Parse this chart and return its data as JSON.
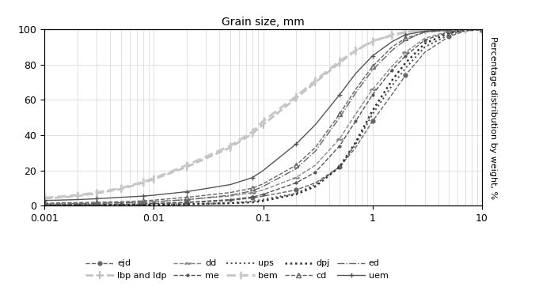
{
  "title": "Grain size, mm",
  "ylabel": "Percentage distribution by weight, %",
  "xlim": [
    0.001,
    10
  ],
  "ylim": [
    0,
    100
  ],
  "series": {
    "ejd": {
      "x": [
        0.001,
        0.002,
        0.003,
        0.005,
        0.008,
        0.01,
        0.02,
        0.05,
        0.08,
        0.1,
        0.2,
        0.3,
        0.5,
        0.7,
        1.0,
        1.5,
        2.0,
        3.0,
        5.0,
        7.0,
        10.0
      ],
      "y": [
        0.5,
        0.6,
        0.7,
        0.8,
        1.0,
        1.2,
        1.8,
        3.0,
        4.5,
        5.5,
        9.0,
        13.0,
        22.0,
        33.0,
        48.0,
        63.0,
        74.0,
        87.0,
        96.0,
        99.0,
        100.0
      ],
      "color": "#666666",
      "linestyle": "--",
      "marker": "o",
      "markersize": 3.5,
      "linewidth": 1.0,
      "markevery": 2
    },
    "lbp_ldp": {
      "x": [
        0.001,
        0.002,
        0.003,
        0.005,
        0.008,
        0.01,
        0.02,
        0.05,
        0.08,
        0.1,
        0.2,
        0.3,
        0.5,
        0.7,
        1.0,
        1.5,
        2.0,
        3.0,
        5.0,
        7.0,
        10.0
      ],
      "y": [
        4.0,
        5.5,
        7.0,
        9.5,
        13.0,
        15.0,
        22.0,
        33.0,
        41.0,
        46.0,
        61.0,
        70.0,
        81.0,
        88.0,
        93.0,
        97.0,
        98.5,
        99.5,
        100.0,
        100.0,
        100.0
      ],
      "color": "#c0c0c0",
      "linestyle": "--",
      "marker": "|",
      "markersize": 7,
      "linewidth": 1.8,
      "markevery": 1,
      "markeredgewidth": 1.5
    },
    "dd": {
      "x": [
        0.001,
        0.002,
        0.003,
        0.005,
        0.008,
        0.01,
        0.02,
        0.05,
        0.08,
        0.1,
        0.2,
        0.3,
        0.5,
        0.7,
        1.0,
        1.5,
        2.0,
        3.0,
        5.0,
        7.0,
        10.0
      ],
      "y": [
        1.0,
        1.2,
        1.4,
        1.7,
        2.0,
        2.3,
        3.5,
        5.5,
        7.5,
        9.0,
        16.0,
        23.0,
        38.0,
        52.0,
        66.0,
        79.0,
        87.0,
        95.0,
        99.0,
        100.0,
        100.0
      ],
      "color": "#888888",
      "linestyle": "--",
      "marker": "$\\sim$",
      "markersize": 5,
      "linewidth": 1.0,
      "markevery": 2
    },
    "me": {
      "x": [
        0.001,
        0.002,
        0.003,
        0.005,
        0.008,
        0.01,
        0.02,
        0.05,
        0.08,
        0.1,
        0.2,
        0.3,
        0.5,
        0.7,
        1.0,
        1.5,
        2.0,
        3.0,
        5.0,
        7.0,
        10.0
      ],
      "y": [
        0.5,
        0.6,
        0.7,
        0.9,
        1.1,
        1.3,
        2.0,
        3.5,
        5.0,
        6.5,
        13.0,
        19.0,
        34.0,
        48.0,
        63.0,
        77.0,
        85.0,
        94.0,
        98.5,
        99.5,
        100.0
      ],
      "color": "#555555",
      "linestyle": "--",
      "marker": ".",
      "markersize": 4,
      "linewidth": 1.0,
      "markevery": 1
    },
    "ups": {
      "x": [
        0.001,
        0.002,
        0.003,
        0.005,
        0.008,
        0.01,
        0.02,
        0.05,
        0.08,
        0.1,
        0.2,
        0.3,
        0.5,
        0.7,
        1.0,
        1.5,
        2.0,
        3.0,
        5.0,
        7.0,
        10.0
      ],
      "y": [
        0.2,
        0.3,
        0.3,
        0.4,
        0.5,
        0.6,
        0.9,
        1.5,
        2.5,
        3.5,
        7.0,
        12.0,
        22.0,
        35.0,
        52.0,
        68.0,
        78.0,
        90.0,
        97.0,
        99.5,
        100.0
      ],
      "color": "#555555",
      "linestyle": ":",
      "marker": "",
      "markersize": 0,
      "linewidth": 1.5,
      "markevery": 1
    },
    "bem": {
      "x": [
        0.001,
        0.002,
        0.003,
        0.005,
        0.008,
        0.01,
        0.02,
        0.05,
        0.08,
        0.1,
        0.2,
        0.3,
        0.5,
        0.7,
        1.0,
        1.5,
        2.0,
        3.0,
        5.0,
        7.0,
        10.0
      ],
      "y": [
        4.5,
        6.0,
        7.5,
        10.0,
        13.5,
        15.5,
        23.0,
        34.0,
        42.0,
        48.0,
        62.0,
        71.0,
        82.0,
        88.0,
        93.5,
        96.5,
        98.5,
        99.5,
        100.0,
        100.0,
        100.0
      ],
      "color": "#c8c8c8",
      "linestyle": "--",
      "marker": "|",
      "markersize": 7,
      "linewidth": 2.2,
      "markevery": 1,
      "markeredgewidth": 1.8
    },
    "dpj": {
      "x": [
        0.001,
        0.002,
        0.003,
        0.005,
        0.008,
        0.01,
        0.02,
        0.05,
        0.08,
        0.1,
        0.2,
        0.3,
        0.5,
        0.7,
        1.0,
        1.5,
        2.0,
        3.0,
        5.0,
        7.0,
        10.0
      ],
      "y": [
        0.2,
        0.3,
        0.3,
        0.4,
        0.5,
        0.6,
        0.9,
        1.5,
        2.0,
        2.8,
        6.5,
        11.0,
        22.0,
        36.0,
        54.0,
        71.0,
        81.0,
        92.0,
        98.0,
        99.5,
        100.0
      ],
      "color": "#333333",
      "linestyle": ":",
      "marker": "",
      "markersize": 0,
      "linewidth": 1.8,
      "markevery": 1
    },
    "cd": {
      "x": [
        0.001,
        0.002,
        0.003,
        0.005,
        0.008,
        0.01,
        0.02,
        0.05,
        0.08,
        0.1,
        0.2,
        0.3,
        0.5,
        0.7,
        1.0,
        1.5,
        2.0,
        3.0,
        5.0,
        7.0,
        10.0
      ],
      "y": [
        1.5,
        1.8,
        2.0,
        2.3,
        2.8,
        3.2,
        4.8,
        7.5,
        10.0,
        12.5,
        23.0,
        33.0,
        52.0,
        66.0,
        79.0,
        90.0,
        95.0,
        98.5,
        99.5,
        100.0,
        100.0
      ],
      "color": "#666666",
      "linestyle": "--",
      "marker": "^",
      "markersize": 4,
      "linewidth": 1.0,
      "markevery": 2
    },
    "ed": {
      "x": [
        0.001,
        0.002,
        0.003,
        0.005,
        0.008,
        0.01,
        0.02,
        0.05,
        0.08,
        0.1,
        0.2,
        0.3,
        0.5,
        0.7,
        1.0,
        1.5,
        2.0,
        3.0,
        5.0,
        7.0,
        10.0
      ],
      "y": [
        1.0,
        1.2,
        1.4,
        1.7,
        2.0,
        2.3,
        3.5,
        6.0,
        8.5,
        11.0,
        21.0,
        31.0,
        50.0,
        64.0,
        77.0,
        88.0,
        94.0,
        98.5,
        99.5,
        100.0,
        100.0
      ],
      "color": "#666666",
      "linestyle": "-.",
      "marker": "",
      "markersize": 0,
      "linewidth": 1.0,
      "markevery": 1
    },
    "uem": {
      "x": [
        0.001,
        0.002,
        0.003,
        0.005,
        0.008,
        0.01,
        0.02,
        0.05,
        0.08,
        0.1,
        0.2,
        0.3,
        0.5,
        0.7,
        1.0,
        1.5,
        2.0,
        3.0,
        5.0,
        7.0,
        10.0
      ],
      "y": [
        3.0,
        3.5,
        4.0,
        4.8,
        5.5,
        6.0,
        8.0,
        12.0,
        16.0,
        20.0,
        35.0,
        46.0,
        63.0,
        75.0,
        85.0,
        93.0,
        97.0,
        99.0,
        100.0,
        100.0,
        100.0
      ],
      "color": "#555555",
      "linestyle": "-",
      "marker": "+",
      "markersize": 5,
      "linewidth": 1.0,
      "markevery": 2
    }
  }
}
